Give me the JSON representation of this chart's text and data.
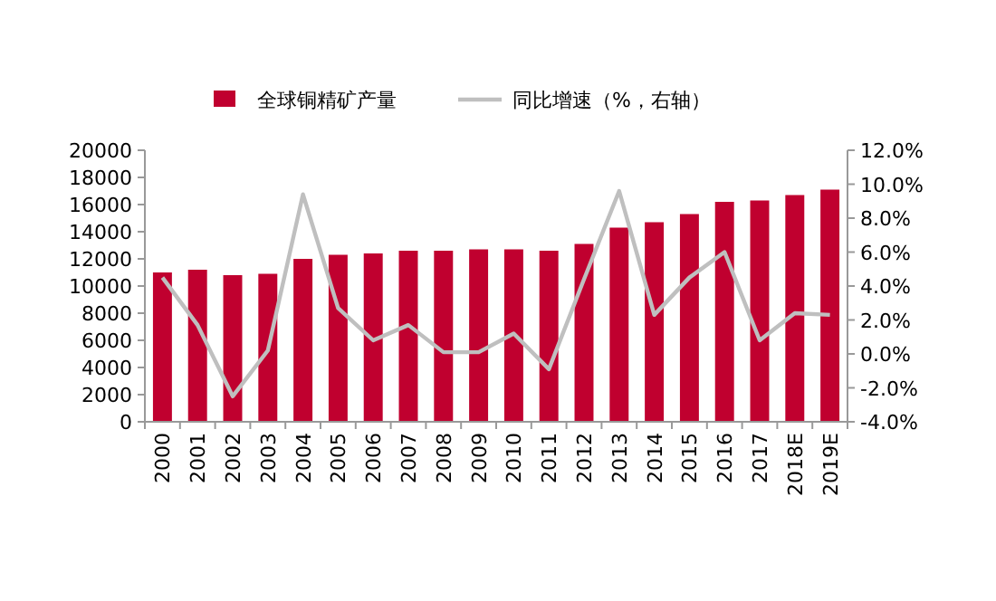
{
  "chart_data": {
    "type": "bar",
    "categories": [
      "2000",
      "2001",
      "2002",
      "2003",
      "2004",
      "2005",
      "2006",
      "2007",
      "2008",
      "2009",
      "2010",
      "2011",
      "2012",
      "2013",
      "2014",
      "2015",
      "2016",
      "2017",
      "2018E",
      "2019E"
    ],
    "series": [
      {
        "name": "全球铜精矿产量",
        "color": "#c0002f",
        "values": [
          11000,
          11200,
          10800,
          10900,
          12000,
          12300,
          12400,
          12600,
          12600,
          12700,
          12700,
          12600,
          13100,
          14300,
          14700,
          15300,
          16200,
          16300,
          16700,
          17100
        ]
      },
      {
        "name": "同比增速（%，右轴）",
        "type": "line",
        "axis": "y2",
        "color": "#bfbfbf",
        "values": [
          4.5,
          1.7,
          -2.5,
          0.2,
          9.4,
          2.7,
          0.8,
          1.7,
          0.1,
          0.1,
          1.2,
          -0.9,
          4.4,
          9.6,
          2.3,
          4.5,
          6.0,
          0.8,
          2.4,
          2.3
        ]
      }
    ],
    "ylim": [
      0,
      20000
    ],
    "yticks": [
      0,
      2000,
      4000,
      6000,
      8000,
      10000,
      12000,
      14000,
      16000,
      18000,
      20000
    ],
    "y2lim": [
      -4,
      12
    ],
    "y2ticks": [
      {
        "value": -4,
        "label": "-4.0%"
      },
      {
        "value": -2,
        "label": "-2.0%"
      },
      {
        "value": 0,
        "label": "0.0%"
      },
      {
        "value": 2,
        "label": "2.0%"
      },
      {
        "value": 4,
        "label": "4.0%"
      },
      {
        "value": 6,
        "label": "6.0%"
      },
      {
        "value": 8,
        "label": "8.0%"
      },
      {
        "value": 10,
        "label": "10.0%"
      },
      {
        "value": 12,
        "label": "12.0%"
      }
    ],
    "legend": "top"
  }
}
